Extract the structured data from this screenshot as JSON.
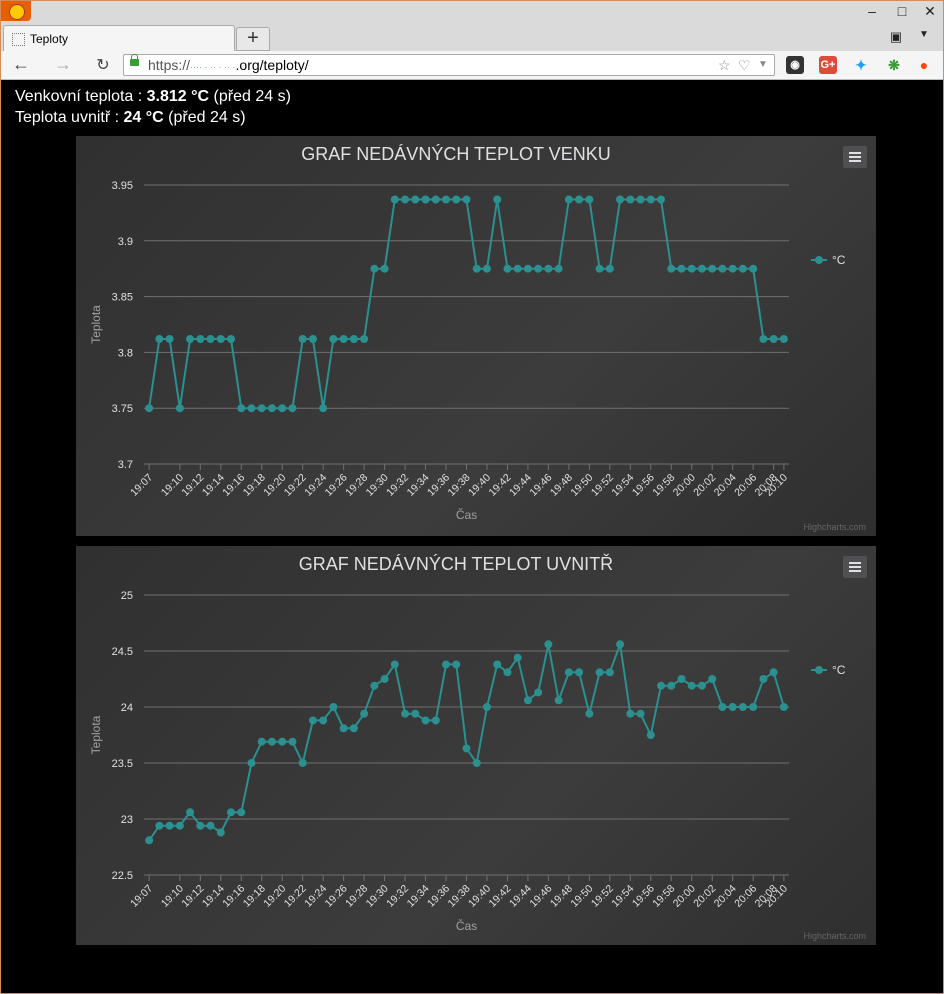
{
  "browser": {
    "tab_title": "Teploty",
    "url_scheme": "https://",
    "url_domain_hint": "···· · ·· · ·· ·",
    "url_rest": ".org/teploty/",
    "ext_colors": {
      "gplus": "#dd4b39",
      "twitter": "#1da1f2",
      "reddit": "#ff4500"
    }
  },
  "info": {
    "outside_label": "Venkovní teplota : ",
    "outside_value": "3.812 °C",
    "outside_age": " (před 24 s)",
    "inside_label": "Teplota uvnitř : ",
    "inside_value": "24 °C",
    "inside_age": " (před 24 s)"
  },
  "chart_data": [
    {
      "type": "line",
      "title": "GRAF NEDÁVNÝCH TEPLOT VENKU",
      "xlabel": "Čas",
      "ylabel": "Teplota",
      "credits": "Highcharts.com",
      "legend_position": "right",
      "grid": true,
      "color": "#2b908f",
      "ylim": [
        3.7,
        3.95
      ],
      "yticks": [
        "3.95",
        "3.9",
        "3.85",
        "3.8",
        "3.75",
        "3.7"
      ],
      "xticks": [
        "19:07",
        "19:10",
        "19:12",
        "19:14",
        "19:16",
        "19:18",
        "19:20",
        "19:22",
        "19:24",
        "19:26",
        "19:28",
        "19:30",
        "19:32",
        "19:34",
        "19:36",
        "19:38",
        "19:40",
        "19:42",
        "19:44",
        "19:46",
        "19:48",
        "19:50",
        "19:52",
        "19:54",
        "19:56",
        "19:58",
        "20:00",
        "20:02",
        "20:04",
        "20:06",
        "20:08",
        "20:10"
      ],
      "series": [
        {
          "name": "°C",
          "values": [
            3.75,
            3.812,
            3.812,
            3.75,
            3.812,
            3.812,
            3.812,
            3.812,
            3.812,
            3.75,
            3.75,
            3.75,
            3.75,
            3.75,
            3.75,
            3.812,
            3.812,
            3.75,
            3.812,
            3.812,
            3.812,
            3.812,
            3.875,
            3.875,
            3.937,
            3.937,
            3.937,
            3.937,
            3.937,
            3.937,
            3.937,
            3.937,
            3.875,
            3.875,
            3.937,
            3.875,
            3.875,
            3.875,
            3.875,
            3.875,
            3.875,
            3.937,
            3.937,
            3.937,
            3.875,
            3.875,
            3.937,
            3.937,
            3.937,
            3.937,
            3.937,
            3.875,
            3.875,
            3.875,
            3.875,
            3.875,
            3.875,
            3.875,
            3.875,
            3.875,
            3.812,
            3.812,
            3.812
          ]
        }
      ]
    },
    {
      "type": "line",
      "title": "GRAF NEDÁVNÝCH TEPLOT UVNITŘ",
      "xlabel": "Čas",
      "ylabel": "Teplota",
      "credits": "Highcharts.com",
      "legend_position": "right",
      "grid": true,
      "color": "#2b908f",
      "ylim": [
        22.5,
        25
      ],
      "yticks": [
        "25",
        "24.5",
        "24",
        "23.5",
        "23",
        "22.5"
      ],
      "xticks": [
        "19:07",
        "19:10",
        "19:12",
        "19:14",
        "19:16",
        "19:18",
        "19:20",
        "19:22",
        "19:24",
        "19:26",
        "19:28",
        "19:30",
        "19:32",
        "19:34",
        "19:36",
        "19:38",
        "19:40",
        "19:42",
        "19:44",
        "19:46",
        "19:48",
        "19:50",
        "19:52",
        "19:54",
        "19:56",
        "19:58",
        "20:00",
        "20:02",
        "20:04",
        "20:06",
        "20:08",
        "20:10"
      ],
      "series": [
        {
          "name": "°C",
          "values": [
            22.81,
            22.94,
            22.94,
            22.94,
            23.06,
            22.94,
            22.94,
            22.88,
            23.06,
            23.06,
            23.5,
            23.69,
            23.69,
            23.69,
            23.69,
            23.5,
            23.88,
            23.88,
            24.0,
            23.81,
            23.81,
            23.94,
            24.19,
            24.25,
            24.38,
            23.94,
            23.94,
            23.88,
            23.88,
            24.38,
            24.38,
            23.63,
            23.5,
            24.0,
            24.38,
            24.31,
            24.44,
            24.06,
            24.13,
            24.56,
            24.06,
            24.31,
            24.31,
            23.94,
            24.31,
            24.31,
            24.56,
            23.94,
            23.94,
            23.75,
            24.19,
            24.19,
            24.25,
            24.19,
            24.19,
            24.25,
            24.0,
            24.0,
            24.0,
            24.0,
            24.25,
            24.31,
            24.0
          ]
        }
      ]
    }
  ]
}
